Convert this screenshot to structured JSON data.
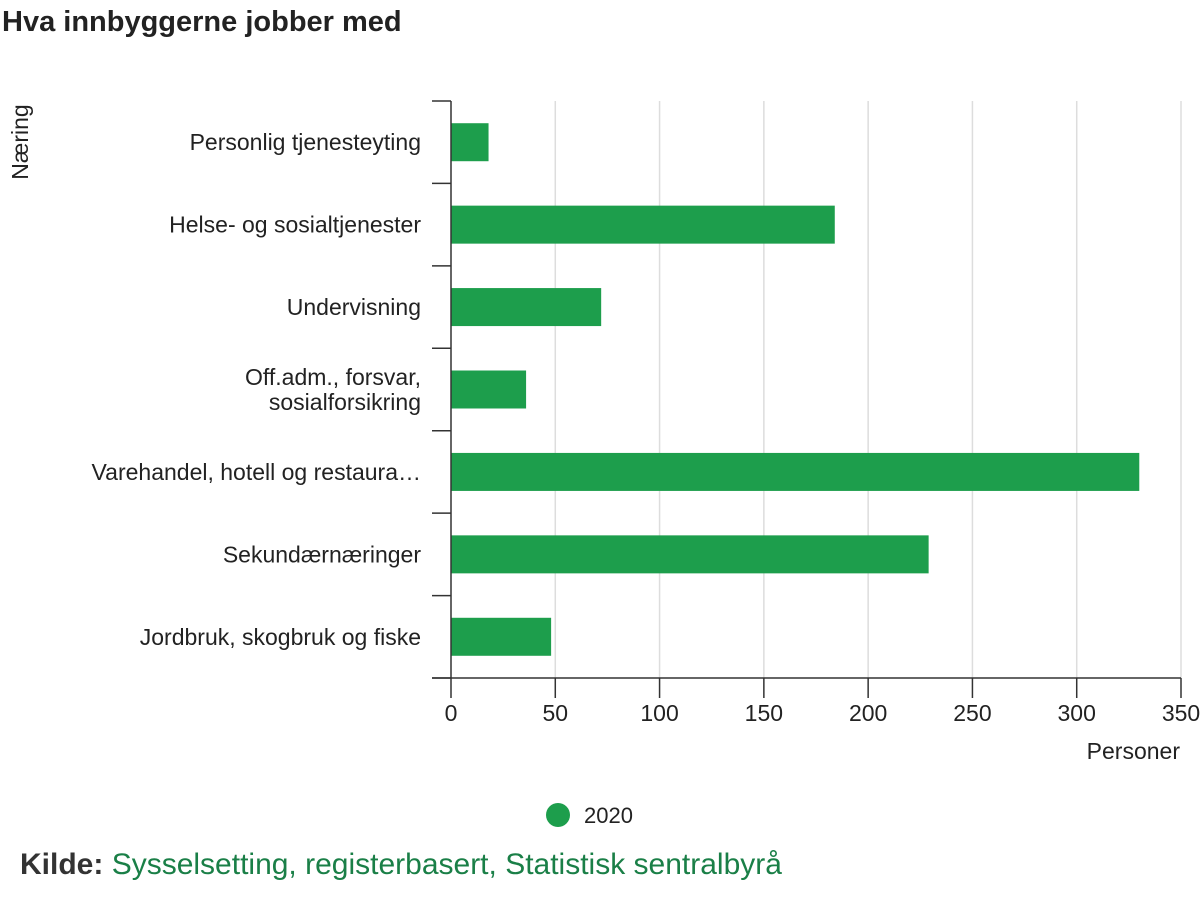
{
  "title": "Hva innbyggerne jobber med",
  "source": {
    "label": "Kilde:",
    "text": "Sysselsetting, registerbasert, Statistisk sentralbyrå"
  },
  "colors": {
    "bar": "#1d9e4c",
    "grid": "#dddddd",
    "axis": "#333333",
    "link": "#1a7f47"
  },
  "chart_data": {
    "type": "bar",
    "orientation": "horizontal",
    "categories": [
      [
        "Personlig tjenesteyting"
      ],
      [
        "Helse- og sosialtjenester"
      ],
      [
        "Undervisning"
      ],
      [
        "Off.adm., forsvar,",
        "sosialforsikring"
      ],
      [
        "Varehandel, hotell og restaura…"
      ],
      [
        "Sekundærnæringer"
      ],
      [
        "Jordbruk, skogbruk og fiske"
      ]
    ],
    "series": [
      {
        "name": "2020",
        "values": [
          18,
          184,
          72,
          36,
          330,
          229,
          48
        ]
      }
    ],
    "xlim": [
      0,
      350
    ],
    "xticks": [
      0,
      50,
      100,
      150,
      200,
      250,
      300,
      350
    ],
    "xlabel": "Personer",
    "ylabel": "Næring",
    "grid": true,
    "legend": "bottom-center"
  }
}
